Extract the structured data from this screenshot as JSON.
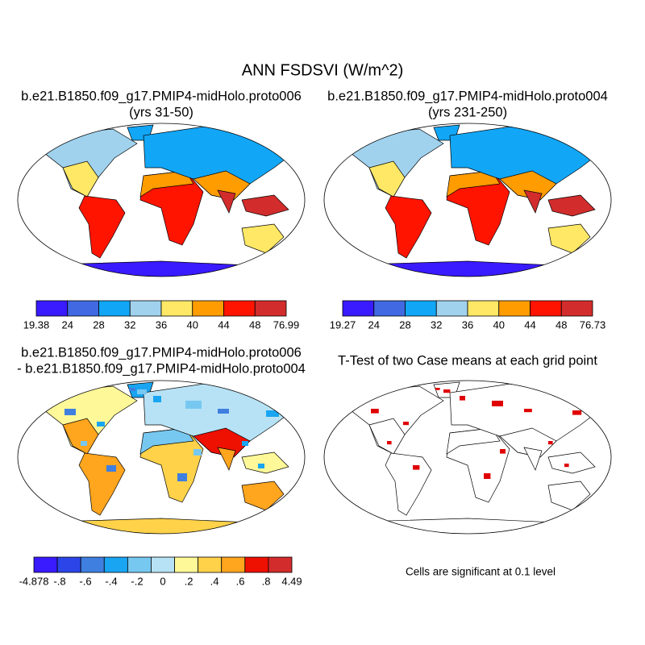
{
  "title": "ANN FSDSVI (W/m^2)",
  "panels": [
    {
      "title_lines": [
        "b.e21.B1850.f09_g17.PMIP4-midHolo.proto006",
        "(yrs 31-50)"
      ],
      "colorbar": {
        "colors": [
          "#3a1aff",
          "#4169e1",
          "#12a6f6",
          "#a0d2ee",
          "#ffe866",
          "#ff9c00",
          "#ff1400",
          "#d22c2c"
        ],
        "labels": [
          "19.38",
          "24",
          "28",
          "32",
          "36",
          "40",
          "44",
          "48",
          "76.99"
        ]
      }
    },
    {
      "title_lines": [
        "b.e21.B1850.f09_g17.PMIP4-midHolo.proto004",
        "(yrs 231-250)"
      ],
      "colorbar": {
        "colors": [
          "#3a1aff",
          "#4169e1",
          "#12a6f6",
          "#a0d2ee",
          "#ffe866",
          "#ff9c00",
          "#ff1400",
          "#d22c2c"
        ],
        "labels": [
          "19.27",
          "24",
          "28",
          "32",
          "36",
          "40",
          "44",
          "48",
          "76.73"
        ]
      }
    },
    {
      "title_lines": [
        "b.e21.B1850.f09_g17.PMIP4-midHolo.proto006",
        "- b.e21.B1850.f09_g17.PMIP4-midHolo.proto004"
      ],
      "colorbar": {
        "colors": [
          "#3a1aff",
          "#2b45e8",
          "#3f7fe0",
          "#19a5f2",
          "#77c8f0",
          "#b7e2f5",
          "#fff898",
          "#ffd24a",
          "#ffa51e",
          "#ee1000",
          "#d22c2c"
        ],
        "labels": [
          "-4.878",
          "-.8",
          "-.6",
          "-.4",
          "-.2",
          "0",
          ".2",
          ".4",
          ".6",
          ".8",
          "4.49"
        ]
      }
    },
    {
      "title_lines": [
        "T-Test of two Case means at each grid point"
      ],
      "note": "Cells are significant at 0.1 level"
    }
  ]
}
